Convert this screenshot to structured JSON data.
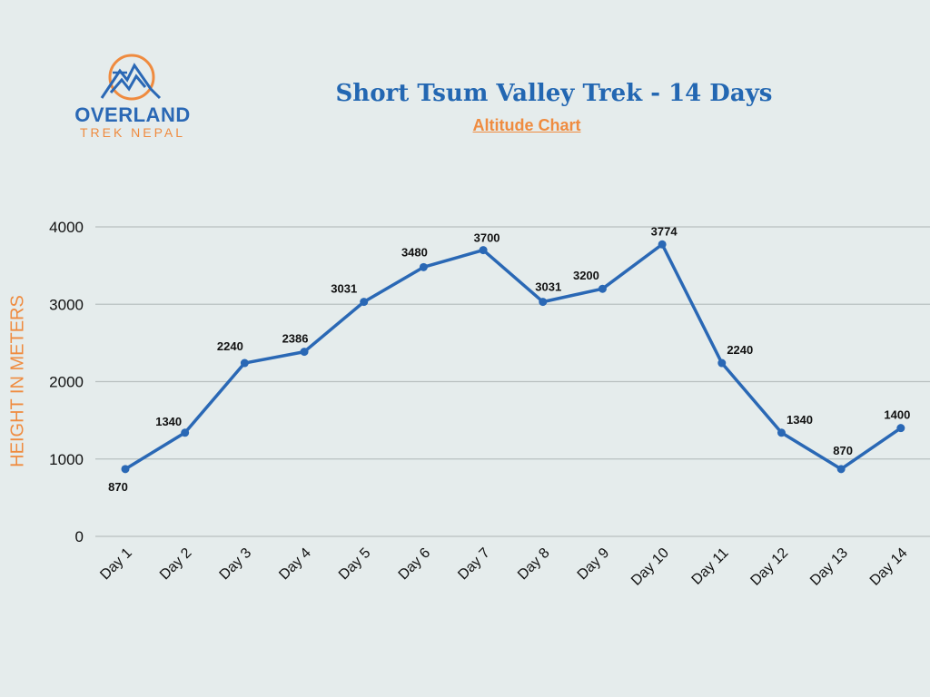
{
  "brand": {
    "name": "OVERLAND",
    "tagline": "TREK NEPAL",
    "colors": {
      "blue": "#2a68b5",
      "orange": "#ef8b3f"
    }
  },
  "header": {
    "title": "Short Tsum Valley Trek - 14 Days",
    "subtitle": "Altitude Chart"
  },
  "chart_data": {
    "type": "line",
    "title": "Short Tsum Valley Trek - 14 Days",
    "subtitle": "Altitude Chart",
    "xlabel": "",
    "ylabel": "HEIGHT IN METERS",
    "categories": [
      "Day 1",
      "Day 2",
      "Day 3",
      "Day 4",
      "Day 5",
      "Day 6",
      "Day 7",
      "Day 8",
      "Day 9",
      "Day 10",
      "Day 11",
      "Day 12",
      "Day 13",
      "Day 14"
    ],
    "series": [
      {
        "name": "Altitude",
        "color": "#2a68b5",
        "values": [
          870,
          1340,
          2240,
          2386,
          3031,
          3480,
          3700,
          3031,
          3200,
          3774,
          2240,
          1340,
          870,
          1400
        ]
      }
    ],
    "ylim": [
      0,
      4000
    ],
    "yticks": [
      0,
      1000,
      2000,
      3000,
      4000
    ],
    "grid": true,
    "data_labels": true,
    "legend": "none"
  }
}
